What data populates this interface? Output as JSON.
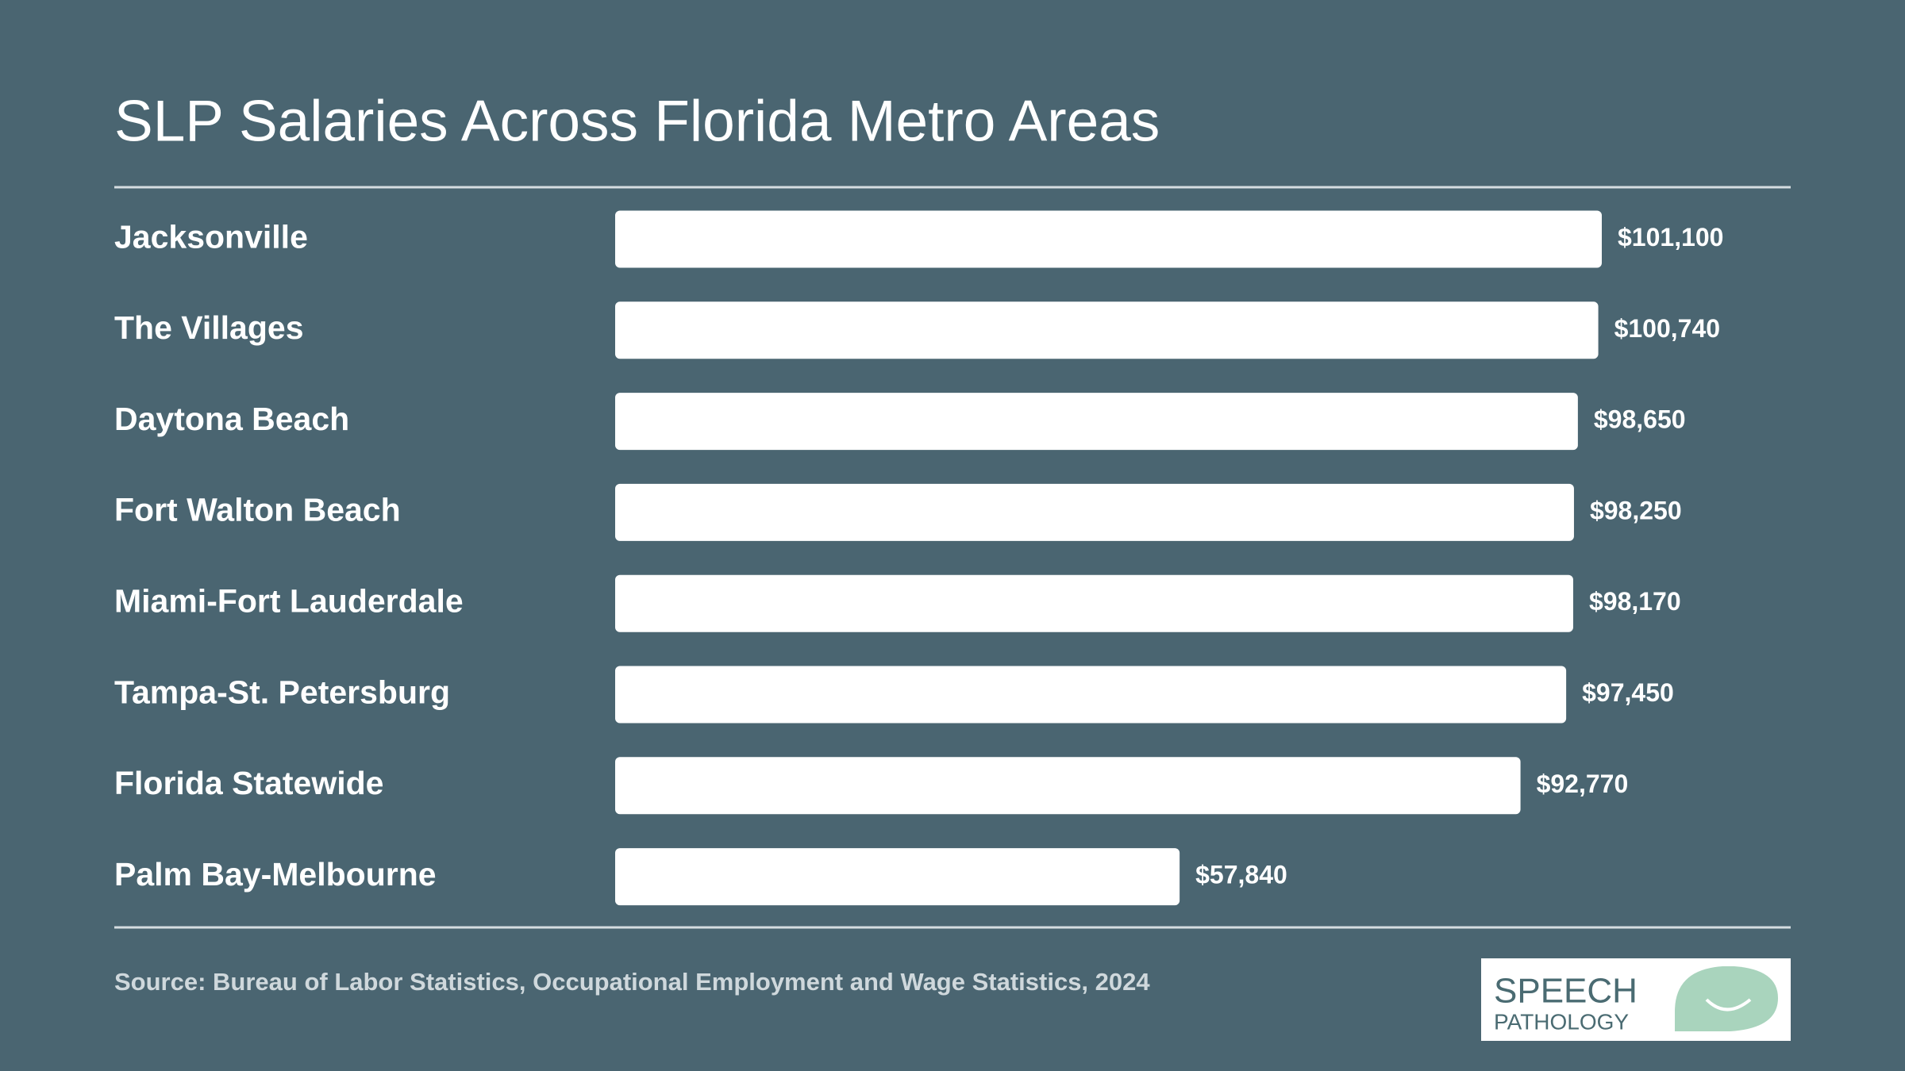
{
  "chart_data": {
    "type": "bar",
    "orientation": "horizontal",
    "title": "SLP Salaries Across Florida Metro Areas",
    "categories": [
      "Jacksonville",
      "The Villages",
      "Daytona Beach",
      "Fort Walton Beach",
      "Miami-Fort Lauderdale",
      "Tampa-St. Petersburg",
      "Florida Statewide",
      "Palm Bay-Melbourne"
    ],
    "values": [
      101100,
      100740,
      98650,
      98250,
      98170,
      97450,
      92770,
      57840
    ],
    "value_labels": [
      "$101,100",
      "$100,740",
      "$98,650",
      "$98,250",
      "$98,170",
      "$97,450",
      "$92,770",
      "$57,840"
    ],
    "color": "#ffffff",
    "source": "Source: Bureau of Labor Statistics, Occupational Employment and Wage Statistics, 2024"
  },
  "logo": {
    "line1": "SPEECH",
    "line2": "PATHOLOGY"
  }
}
